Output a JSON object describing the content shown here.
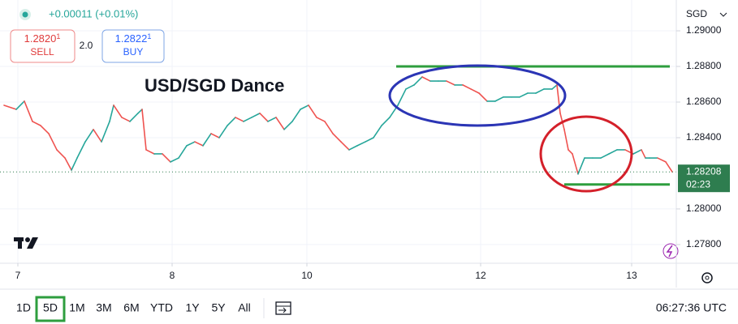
{
  "chart_data": {
    "type": "line",
    "title": "USD/SGD Dance",
    "currency": "SGD",
    "change": "+0.00011 (+0.01%)",
    "sell": {
      "price": "1.2820",
      "pipette": "1",
      "label": "SELL"
    },
    "spread": "2.0",
    "buy": {
      "price": "1.2822",
      "pipette": "1",
      "label": "BUY"
    },
    "up_color": "#26a69a",
    "down_color": "#ef5350",
    "grid": true,
    "xlim": [
      0,
      166.6
    ],
    "xticks": [
      {
        "value": 4.4,
        "label": "7"
      },
      {
        "value": 42.4,
        "label": "8"
      },
      {
        "value": 75.6,
        "label": "10"
      },
      {
        "value": 118.4,
        "label": "12"
      },
      {
        "value": 155.6,
        "label": "13"
      }
    ],
    "ylim": [
      1.27695,
      1.29173
    ],
    "yticks": [
      {
        "value": 1.278,
        "label": "1.27800"
      },
      {
        "value": 1.28,
        "label": "1.28000"
      },
      {
        "value": 1.284,
        "label": "1.28400"
      },
      {
        "value": 1.286,
        "label": "1.28600"
      },
      {
        "value": 1.288,
        "label": "1.28800"
      },
      {
        "value": 1.29,
        "label": "1.29000"
      }
    ],
    "x": [
      1,
      4,
      6,
      8,
      10,
      12,
      14,
      16,
      17.6,
      19,
      21,
      23,
      25,
      27,
      28,
      30,
      32,
      34,
      35,
      36,
      38,
      40,
      42,
      44,
      46,
      48,
      50,
      52,
      54,
      56,
      58,
      60,
      62,
      64,
      66,
      68,
      70,
      72,
      74,
      76,
      78,
      80,
      82,
      84,
      86,
      88,
      90,
      92,
      94,
      96,
      98,
      100,
      102,
      104,
      106,
      108,
      110,
      112,
      114,
      116,
      118,
      120,
      122,
      124,
      126,
      128,
      130,
      132,
      134,
      136,
      137.2,
      138,
      139,
      140,
      141,
      142.4,
      144,
      146,
      148,
      150,
      152,
      154,
      156,
      158,
      159,
      160,
      162,
      164,
      165.6
    ],
    "values": [
      1.28582,
      1.28559,
      1.28605,
      1.28491,
      1.28468,
      1.28423,
      1.28332,
      1.28286,
      1.28218,
      1.28286,
      1.28377,
      1.28446,
      1.28377,
      1.28491,
      1.28582,
      1.28514,
      1.28491,
      1.28537,
      1.28559,
      1.28332,
      1.28309,
      1.28309,
      1.28264,
      1.28286,
      1.28355,
      1.28377,
      1.28355,
      1.28423,
      1.284,
      1.28468,
      1.28514,
      1.28491,
      1.28514,
      1.28537,
      1.28491,
      1.28514,
      1.28446,
      1.28491,
      1.28559,
      1.28582,
      1.28514,
      1.28491,
      1.28423,
      1.28377,
      1.28332,
      1.28355,
      1.28377,
      1.284,
      1.28468,
      1.28514,
      1.28582,
      1.28673,
      1.28696,
      1.28741,
      1.28718,
      1.28718,
      1.28718,
      1.28696,
      1.28696,
      1.28673,
      1.2865,
      1.28605,
      1.28605,
      1.28628,
      1.28628,
      1.28628,
      1.2865,
      1.2865,
      1.28673,
      1.28673,
      1.28696,
      1.28537,
      1.28446,
      1.28332,
      1.28309,
      1.28196,
      1.28286,
      1.28286,
      1.28286,
      1.28309,
      1.28332,
      1.28332,
      1.28309,
      1.28332,
      1.28286,
      1.28286,
      1.28286,
      1.28264,
      1.28208
    ],
    "levels": [
      {
        "value": 1.288,
        "x": [
          97.6,
          165
        ],
        "color": "#2e9e3e"
      },
      {
        "value": 1.28137,
        "x": [
          139,
          165
        ],
        "color": "#2e9e3e"
      }
    ],
    "price_tag": {
      "value": 1.28208,
      "countdown": "02:23",
      "color": "#2e7d4f"
    },
    "timeframes": [
      "1D",
      "5D",
      "1M",
      "3M",
      "6M",
      "YTD",
      "1Y",
      "5Y",
      "All"
    ],
    "active_timeframe": 1,
    "clock": "06:27:36 UTC"
  }
}
